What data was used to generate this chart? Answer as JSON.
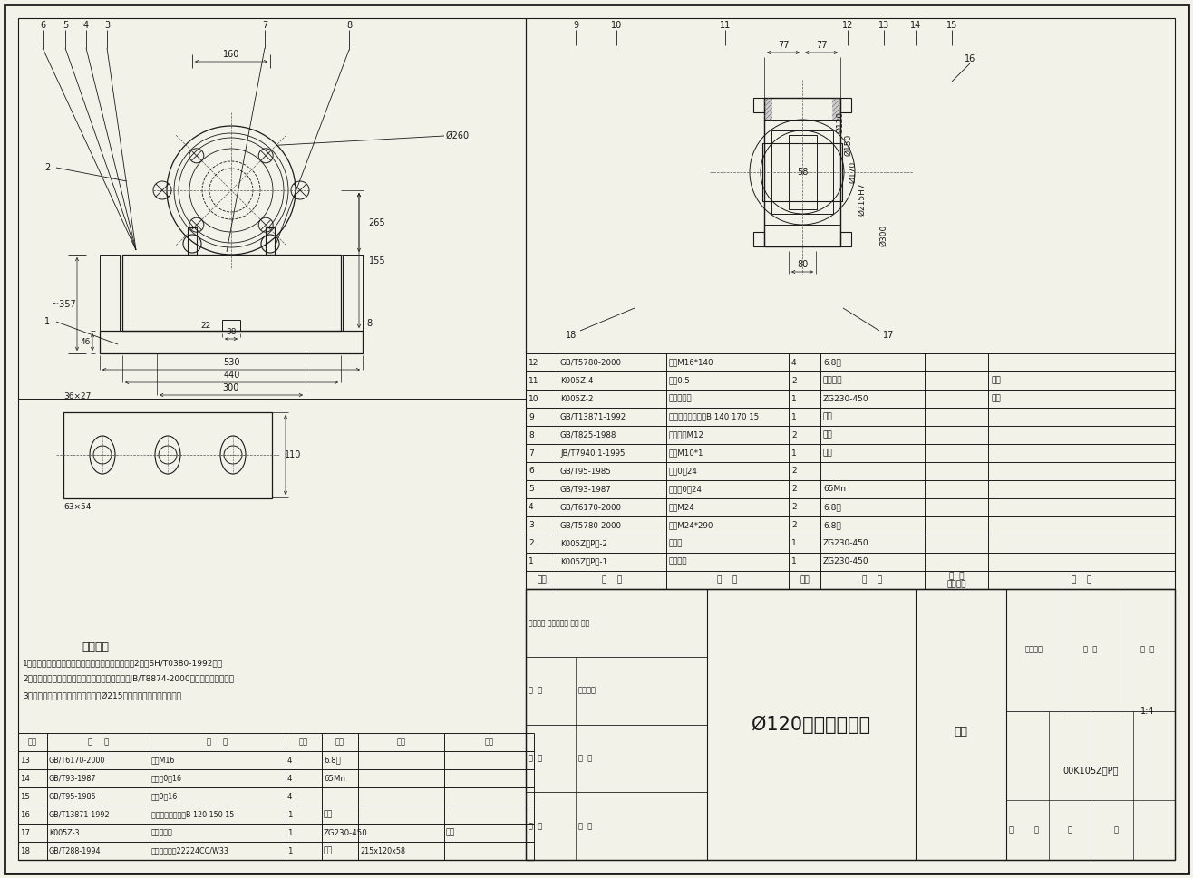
{
  "bg_color": "#f2f2e8",
  "line_color": "#1a1a1a",
  "title": "Ø120轴承座（一）",
  "drawing_number": "00K105Z（P）",
  "scale": "1:4",
  "assembly": "组件",
  "bom_rows": [
    {
      "seq": "12",
      "code": "GB/T5780-2000",
      "name": "螺栎M16*140",
      "qty": "4",
      "material": "6.8级",
      "remark": ""
    },
    {
      "seq": "11",
      "code": "K005Z-4",
      "name": "纸块0.5",
      "qty": "2",
      "material": "软刚纸板",
      "remark": "借用"
    },
    {
      "seq": "10",
      "code": "K005Z-2",
      "name": "透盖（一）",
      "qty": "1",
      "material": "ZG230-450",
      "remark": "借用"
    },
    {
      "seq": "9",
      "code": "GB/T13871-1992",
      "name": "旋转轴唇形密封圈B 140 170 15",
      "qty": "1",
      "material": "成品",
      "remark": ""
    },
    {
      "seq": "8",
      "code": "GB/T825-1988",
      "name": "吸环螺钉M12",
      "qty": "2",
      "material": "成品",
      "remark": ""
    },
    {
      "seq": "7",
      "code": "JB/T7940.1-1995",
      "name": "油杯M10*1",
      "qty": "1",
      "material": "成品",
      "remark": ""
    },
    {
      "seq": "6",
      "code": "GB/T95-1985",
      "name": "平块0圈24",
      "qty": "2",
      "material": "",
      "remark": ""
    },
    {
      "seq": "5",
      "code": "GB/T93-1987",
      "name": "弹簧块0圈24",
      "qty": "2",
      "material": "65Mn",
      "remark": ""
    },
    {
      "seq": "4",
      "code": "GB/T6170-2000",
      "name": "螺母M24",
      "qty": "2",
      "material": "6.8级",
      "remark": ""
    },
    {
      "seq": "3",
      "code": "GB/T5780-2000",
      "name": "螺栎M24*290",
      "qty": "2",
      "material": "6.8级",
      "remark": ""
    },
    {
      "seq": "2",
      "code": "K005Z（P）-2",
      "name": "轴承盖",
      "qty": "1",
      "material": "ZG230-450",
      "remark": ""
    },
    {
      "seq": "1",
      "code": "K005Z（P）-1",
      "name": "轴承底座",
      "qty": "1",
      "material": "ZG230-450",
      "remark": ""
    }
  ],
  "bom_rows2": [
    {
      "seq": "18",
      "code": "GB/T288-1994",
      "name": "调心滚子轴承22224CC/W33",
      "qty": "1",
      "material": "成品",
      "size": "215x120x58",
      "remark": ""
    },
    {
      "seq": "17",
      "code": "K005Z-3",
      "name": "透盖（二）",
      "qty": "1",
      "material": "ZG230-450",
      "size": "",
      "remark": "借用"
    },
    {
      "seq": "16",
      "code": "GB/T13871-1992",
      "name": "旋转轴唇形密封圈B 120 150 15",
      "qty": "1",
      "material": "成品",
      "size": "",
      "remark": ""
    },
    {
      "seq": "15",
      "code": "GB/T95-1985",
      "name": "平块0圈16",
      "qty": "4",
      "material": "",
      "size": "",
      "remark": ""
    },
    {
      "seq": "14",
      "code": "GB/T93-1987",
      "name": "弹簧块0圈16",
      "qty": "4",
      "material": "65Mn",
      "size": "",
      "remark": ""
    },
    {
      "seq": "13",
      "code": "GB/T6170-2000",
      "name": "螺母M16",
      "qty": "4",
      "material": "6.8级",
      "size": "",
      "remark": ""
    }
  ],
  "tech_req": [
    "1、与滚筒装配后，轴承座内腔中应充满基础润滑油2号（SH/T0380-1992）。",
    "2、其他未注技术要求按滚动轴承座的技术条件（JB/T8874-2000）中有关规定执行。",
    "3、轴承座体与轴承盖合在一起加工Ø215轴承配合尺寸及相关尺寸。"
  ]
}
